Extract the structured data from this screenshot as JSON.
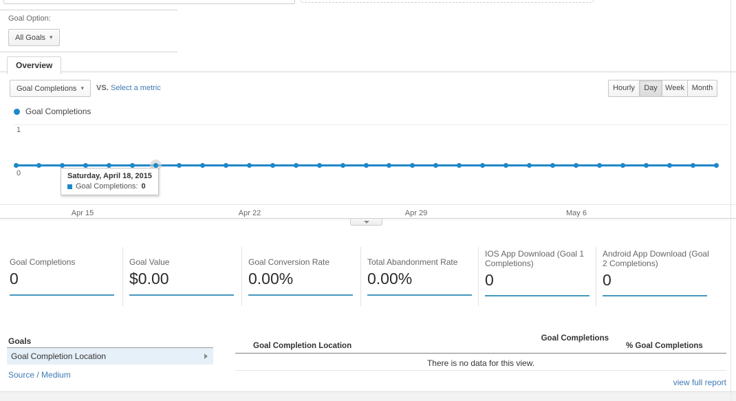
{
  "header": {
    "goal_option_label": "Goal Option:",
    "goal_option_value": "All Goals",
    "tab": "Overview"
  },
  "explorer": {
    "metric_selector": "Goal Completions",
    "vs_label": "VS.",
    "select_metric_link": "Select a metric",
    "granularity": [
      "Hourly",
      "Day",
      "Week",
      "Month"
    ],
    "granularity_selected": "Day",
    "legend": "Goal Completions"
  },
  "chart_data": {
    "type": "line",
    "title": "",
    "series": [
      {
        "name": "Goal Completions",
        "values": [
          0,
          0,
          0,
          0,
          0,
          0,
          0,
          0,
          0,
          0,
          0,
          0,
          0,
          0,
          0,
          0,
          0,
          0,
          0,
          0,
          0,
          0,
          0,
          0,
          0,
          0,
          0,
          0,
          0,
          0,
          0
        ]
      }
    ],
    "x_ticks": [
      "Apr 15",
      "Apr 22",
      "Apr 29",
      "May 6"
    ],
    "y_ticks": [
      "1",
      "0"
    ],
    "ylim": [
      0,
      1
    ],
    "grid": true,
    "highlighted_index": 6,
    "tooltip": {
      "title": "Saturday, April 18, 2015",
      "metric_label": "Goal Completions:",
      "value": "0"
    },
    "series_color": "#1e87c8"
  },
  "scorecards": [
    {
      "title": "Goal Completions",
      "value": "0"
    },
    {
      "title": "Goal Value",
      "value": "$0.00"
    },
    {
      "title": "Goal Conversion Rate",
      "value": "0.00%"
    },
    {
      "title": "Total Abandonment Rate",
      "value": "0.00%"
    },
    {
      "title": "IOS App Download (Goal 1 Completions)",
      "value": "0"
    },
    {
      "title": "Android App Download (Goal 2 Completions)",
      "value": "0"
    }
  ],
  "goals_panel": {
    "title": "Goals",
    "selected_item": "Goal Completion Location",
    "link": "Source / Medium"
  },
  "table": {
    "col_location": "Goal Completion Location",
    "col_completions": "Goal Completions",
    "col_pct": "% Goal Completions",
    "empty_message": "There is no data for this view.",
    "footer_link": "view full report"
  },
  "colors": {
    "series": "#1e87c8",
    "link": "#3e79b5",
    "selected_row_bg": "#e6f0f8"
  }
}
